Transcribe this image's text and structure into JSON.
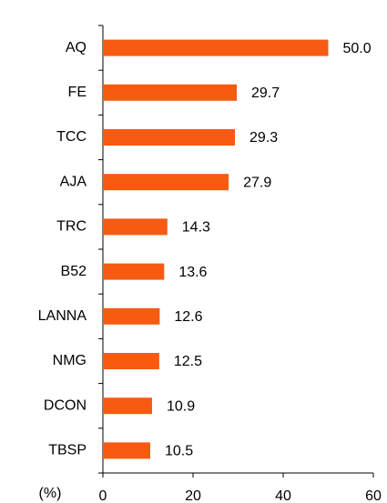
{
  "chart_data": {
    "type": "bar",
    "orientation": "horizontal",
    "categories": [
      "AQ",
      "FE",
      "TCC",
      "AJA",
      "TRC",
      "B52",
      "LANNA",
      "NMG",
      "DCON",
      "TBSP"
    ],
    "values": [
      50.0,
      29.7,
      29.3,
      27.9,
      14.3,
      13.6,
      12.6,
      12.5,
      10.9,
      10.5
    ],
    "value_labels": [
      "50.0",
      "29.7",
      "29.3",
      "27.9",
      "14.3",
      "13.6",
      "12.6",
      "12.5",
      "10.9",
      "10.5"
    ],
    "color": "#f75b12",
    "xlabel": "(%)",
    "xlim": [
      0,
      60
    ],
    "xticks": [
      0,
      20,
      40,
      60
    ],
    "grid": false
  }
}
